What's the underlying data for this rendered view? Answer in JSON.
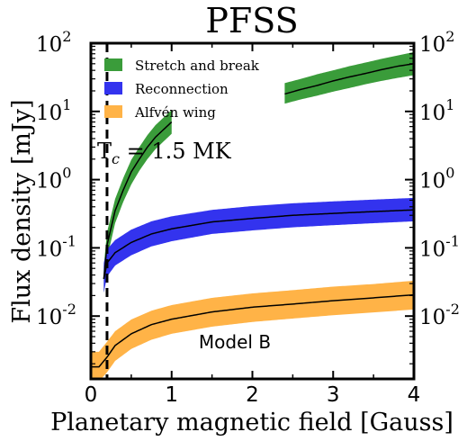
{
  "chart_data": {
    "type": "area",
    "title": "PFSS",
    "xlabel": "Planetary magnetic field [Gauss]",
    "ylabel": "Flux density [mJy]",
    "xlim": [
      0,
      4
    ],
    "ylim": [
      0.0012,
      100
    ],
    "y_scale": "log",
    "x_ticks": [
      0,
      1,
      2,
      3,
      4
    ],
    "x_tick_labels": [
      "0",
      "1",
      "2",
      "3",
      "4"
    ],
    "y_ticks": [
      0.01,
      0.1,
      1,
      10,
      100
    ],
    "y_tick_labels": [
      {
        "base": "10",
        "exp": "-2"
      },
      {
        "base": "10",
        "exp": "-1"
      },
      {
        "base": "10",
        "exp": "0"
      },
      {
        "base": "10",
        "exp": "1"
      },
      {
        "base": "10",
        "exp": "2"
      }
    ],
    "right_axis_mirrored": true,
    "grid": false,
    "legend_position": "top-left",
    "legend_entries": [
      "Stretch and break",
      "Reconnection",
      "Alfvén wing"
    ],
    "vline": {
      "x": 0.2,
      "style": "dashed",
      "label_base": "T",
      "label_sub": "c",
      "label_rest": " = 1.5 MK"
    },
    "annotation": "Model B",
    "series": [
      {
        "name": "Stretch and break",
        "color": "#3a9c3a",
        "x": [
          0.16,
          0.2,
          0.3,
          0.4,
          0.5,
          0.6,
          0.7,
          0.8,
          1.0,
          2.4,
          2.6,
          2.8,
          3.0,
          3.2,
          3.4,
          3.6,
          3.8,
          4.0
        ],
        "center": [
          0.035,
          0.11,
          0.35,
          0.7,
          1.3,
          2.0,
          3.0,
          4.2,
          7.0,
          18,
          21,
          24,
          28,
          32,
          36,
          41,
          46,
          50
        ],
        "lower": [
          0.022,
          0.07,
          0.23,
          0.47,
          0.85,
          1.35,
          2.0,
          2.8,
          4.7,
          13,
          15,
          17,
          19.5,
          22,
          25,
          28,
          31,
          34
        ],
        "upper": [
          0.055,
          0.17,
          0.52,
          1.05,
          1.95,
          3.0,
          4.5,
          6.3,
          10.5,
          26,
          30,
          35,
          40,
          46,
          52,
          59,
          66,
          74
        ]
      },
      {
        "name": "Reconnection",
        "color": "#3333ee",
        "x": [
          0.16,
          0.2,
          0.3,
          0.5,
          0.75,
          1.0,
          1.5,
          2.0,
          2.5,
          3.0,
          3.5,
          4.0
        ],
        "center": [
          0.035,
          0.06,
          0.085,
          0.12,
          0.16,
          0.19,
          0.24,
          0.27,
          0.3,
          0.32,
          0.34,
          0.36
        ],
        "lower": [
          0.022,
          0.038,
          0.055,
          0.078,
          0.105,
          0.125,
          0.16,
          0.18,
          0.2,
          0.215,
          0.23,
          0.245
        ],
        "upper": [
          0.06,
          0.095,
          0.13,
          0.185,
          0.245,
          0.29,
          0.36,
          0.41,
          0.45,
          0.48,
          0.51,
          0.54
        ]
      },
      {
        "name": "Alfvén wing",
        "color": "#ffb347",
        "x": [
          0.0,
          0.1,
          0.2,
          0.3,
          0.5,
          0.75,
          1.0,
          1.5,
          2.0,
          2.5,
          3.0,
          3.5,
          4.0
        ],
        "center": [
          0.0018,
          0.0018,
          0.0025,
          0.0037,
          0.0055,
          0.0075,
          0.009,
          0.0115,
          0.0135,
          0.015,
          0.0168,
          0.0185,
          0.0205
        ],
        "lower": [
          0.0011,
          0.0011,
          0.0015,
          0.0022,
          0.0033,
          0.0045,
          0.0055,
          0.007,
          0.0082,
          0.0092,
          0.0103,
          0.0113,
          0.0125
        ],
        "upper": [
          0.003,
          0.003,
          0.0042,
          0.006,
          0.0089,
          0.012,
          0.0145,
          0.0185,
          0.0215,
          0.024,
          0.027,
          0.0295,
          0.033
        ]
      }
    ]
  }
}
